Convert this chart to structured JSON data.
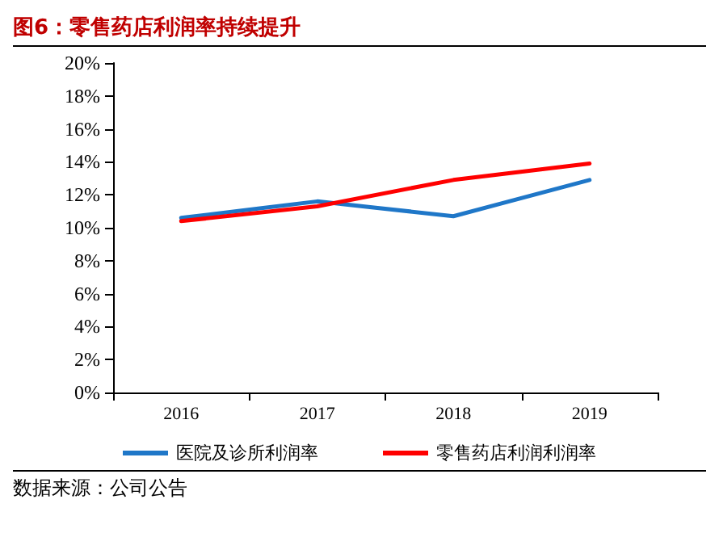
{
  "chart_data": {
    "type": "line",
    "title": "图6：零售药店利润率持续提升",
    "categories": [
      "2016",
      "2017",
      "2018",
      "2019"
    ],
    "series": [
      {
        "name": "医院及诊所利润率",
        "color": "#1f77c8",
        "values": [
          10.6,
          11.6,
          10.7,
          12.9
        ]
      },
      {
        "name": "零售药店利润利润率",
        "color": "#ff0000",
        "values": [
          10.4,
          11.3,
          12.9,
          13.9
        ]
      }
    ],
    "ylim": [
      0,
      20
    ],
    "yticks": [
      {
        "value": 0,
        "label": "0%"
      },
      {
        "value": 2,
        "label": "2%"
      },
      {
        "value": 4,
        "label": "4%"
      },
      {
        "value": 6,
        "label": "6%"
      },
      {
        "value": 8,
        "label": "8%"
      },
      {
        "value": 10,
        "label": "10%"
      },
      {
        "value": 12,
        "label": "12%"
      },
      {
        "value": 14,
        "label": "14%"
      },
      {
        "value": 16,
        "label": "16%"
      },
      {
        "value": 18,
        "label": "18%"
      },
      {
        "value": 20,
        "label": "20%"
      }
    ],
    "grid": false,
    "legend": "bottom",
    "marker": "none",
    "line_style": "solid",
    "annotations": [
      "数据来源：公司公告"
    ]
  }
}
